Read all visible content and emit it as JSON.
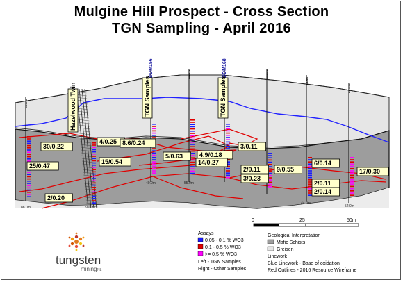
{
  "title_line1": "Mulgine Hill Prospect - Cross Section",
  "title_line2": "TGN Sampling - April 2016",
  "hole_labels": [
    "DDM10",
    "DDM156",
    "DDM11",
    "DDM168",
    "DDM09",
    "DDM07",
    "DDM04"
  ],
  "rotated_labels": {
    "hazelwood": "Hazelwood Twin",
    "tgn_left": "TGN Samples",
    "tgn_right": "TGN Samples"
  },
  "intercepts": [
    "30/0.22",
    "25/0.47",
    "4/0.25",
    "15/0.54",
    "8.6/0.24",
    "5/0.63",
    "4.9/0.18",
    "14/0.27",
    "3/0.11",
    "2/0.11",
    "3/0.23",
    "9/0.55",
    "6/0.14",
    "2/0.11",
    "2/0.14",
    "17/0.30",
    "2/0.20"
  ],
  "depth_labels": [
    "88.0m",
    "90.0m",
    "40.0m",
    "55.0m",
    "44.0m",
    "52.0m"
  ],
  "scale": {
    "ticks": [
      "0",
      "25",
      "50m"
    ]
  },
  "legend": {
    "assays_title": "Assays",
    "assays": [
      {
        "label": "0.05 - 0.1 % WO3",
        "color": "#1a1aff"
      },
      {
        "label": "0.1 - 0.5 % WO3",
        "color": "#e00000"
      },
      {
        "label": ">= 0.5 % WO3",
        "color": "#ff00ff"
      }
    ],
    "left_note": "Left - TGN Samples",
    "right_note": "Right - Other Samples",
    "geo_title": "Geological Interpretation",
    "geo_items": [
      {
        "label": "Mafic Schists",
        "color": "#9d9d9d"
      },
      {
        "label": "Greisen",
        "color": "#e6e6e6"
      }
    ],
    "linework_title": "Linework",
    "blue_note": "Blue Linework - Base of oxidation",
    "red_note": "Red Outlines - 2016 Resource Wireframe"
  },
  "logo": {
    "word": "tungsten",
    "sub": "mining",
    "suffix": "NL"
  },
  "colors": {
    "mafic": "#9d9d9d",
    "greisen": "#e6e6e6",
    "oxidation": "#2020ff",
    "wireframe": "#e00000"
  }
}
